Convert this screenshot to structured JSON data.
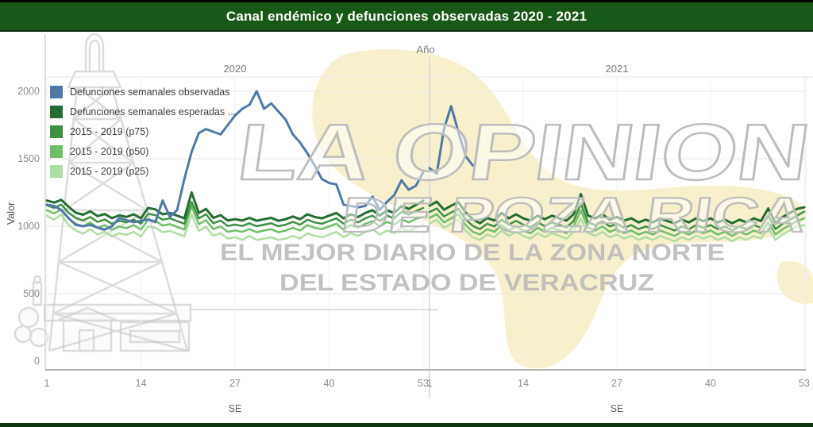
{
  "title": "Canal endémico y defunciones observadas 2020 - 2021",
  "watermark": {
    "line1": "LA OPINION",
    "line2": "DE POZA RICA",
    "line3": "EL MEJOR DIARIO DE LA ZONA NORTE",
    "line4": "DEL ESTADO DE VERACRUZ"
  },
  "colors": {
    "title_bar": "#175916",
    "title_text": "#ffffff",
    "grid_line": "#e7e7e7",
    "grid_line_vertical": "#f0f0f0",
    "frame_line": "#d6d6d6",
    "axis_line": "#b5b5b5",
    "tick_text": "#8c8c8c",
    "watermark_gray": "#bdbdbd",
    "watermark_yellow": "#f7edc4"
  },
  "chart_data": {
    "type": "line",
    "title": "Canal endémico y defunciones observadas 2020 - 2021",
    "facet_axis_title": "Año",
    "facets": [
      "2020",
      "2021"
    ],
    "xlabel": "SE",
    "ylabel": "Valor",
    "ylim": [
      0,
      2100
    ],
    "yticks": [
      0,
      500,
      1000,
      1500,
      2000
    ],
    "xticks": [
      1,
      14,
      27,
      40,
      53
    ],
    "weeks_per_year": 53,
    "grid": true,
    "legend_position": "top-left",
    "series": [
      {
        "name": "Defunciones semanales observadas",
        "color": "#4e79a7",
        "width": 3,
        "values_2020": [
          1160,
          1150,
          1120,
          1060,
          1010,
          1000,
          1010,
          990,
          975,
          1000,
          1060,
          1045,
          1030,
          1040,
          1050,
          1030,
          1190,
          1070,
          1120,
          1350,
          1550,
          1690,
          1720,
          1700,
          1680,
          1750,
          1820,
          1870,
          1900,
          2000,
          1870,
          1910,
          1850,
          1790,
          1680,
          1620,
          1540,
          1450,
          1350,
          1320,
          1310,
          1160,
          1150,
          1140,
          1150,
          1220,
          1120,
          1180,
          1230,
          1340,
          1270,
          1300,
          1400
        ],
        "values_2021": [
          1430,
          1390,
          1720,
          1890,
          1700,
          1520,
          1450
        ]
      },
      {
        "name": "Defunciones semanales esperadas ...",
        "color": "#236d31",
        "width": 3,
        "values_2020": [
          1190,
          1175,
          1195,
          1145,
          1100,
          1085,
          1110,
          1075,
          1090,
          1060,
          1080,
          1068,
          1088,
          1058,
          1135,
          1125,
          1088,
          1098,
          1078,
          1058,
          1250,
          1098,
          1128,
          1062,
          1082,
          1042,
          1052,
          1042,
          1062,
          1040,
          1052,
          1062,
          1040,
          1052,
          1072,
          1052,
          1088,
          1068,
          1058,
          1078,
          1098,
          1058,
          1088,
          1068,
          1098,
          1118,
          1078,
          1118,
          1098,
          1148,
          1128,
          1158,
          1188
        ],
        "values_2021": [
          1152,
          1182,
          1122,
          1152,
          1178,
          1102,
          1052,
          1022,
          1062,
          1042,
          1098,
          1058,
          1088,
          1058,
          1042,
          1078,
          1052,
          1078,
          1058,
          1042,
          1088,
          1238,
          1078,
          1058,
          1088,
          1048,
          1068,
          1042,
          1058,
          1028,
          1048,
          1028,
          1058,
          1038,
          1022,
          1048,
          1028,
          1058,
          1038,
          1058,
          1028,
          1048,
          1022,
          1048,
          1028,
          1058,
          1038,
          1132,
          1022,
          1068,
          1098,
          1128,
          1140
        ]
      },
      {
        "name": "2015 - 2019 (p75)",
        "color": "#3f9142",
        "width": 2.5,
        "values_2020": [
          1155,
          1135,
          1160,
          1100,
          1060,
          1042,
          1068,
          1032,
          1050,
          1018,
          1040,
          1028,
          1048,
          1018,
          1092,
          1082,
          1048,
          1058,
          1038,
          1018,
          1180,
          1058,
          1088,
          1022,
          1042,
          1002,
          1012,
          1002,
          1022,
          1000,
          1012,
          1022,
          1000,
          1012,
          1032,
          1012,
          1048,
          1028,
          1018,
          1038,
          1058,
          1018,
          1048,
          1028,
          1058,
          1078,
          1038,
          1078,
          1058,
          1105,
          1085,
          1112,
          1135
        ],
        "values_2021": [
          1105,
          1132,
          1072,
          1102,
          1128,
          1052,
          1002,
          978,
          1018,
          998,
          1048,
          1012,
          1040,
          1012,
          992,
          1028,
          1002,
          1028,
          1008,
          992,
          1038,
          1168,
          1028,
          1008,
          1038,
          998,
          1018,
          988,
          1008,
          978,
          998,
          978,
          1008,
          988,
          968,
          998,
          978,
          1008,
          988,
          1008,
          978,
          998,
          968,
          998,
          978,
          1008,
          988,
          1078,
          978,
          1018,
          1048,
          1078,
          1108
        ]
      },
      {
        "name": "2015 - 2019 (p50)",
        "color": "#6fbf68",
        "width": 2.5,
        "values_2020": [
          1118,
          1095,
          1125,
          1058,
          1018,
          998,
          1028,
          988,
          1008,
          975,
          998,
          985,
          1008,
          975,
          1048,
          1038,
          1005,
          1015,
          995,
          975,
          1148,
          1015,
          1045,
          978,
          998,
          958,
          968,
          958,
          978,
          955,
          968,
          978,
          955,
          968,
          988,
          968,
          1008,
          988,
          978,
          998,
          1018,
          975,
          1008,
          988,
          1018,
          1038,
          998,
          1032,
          1012,
          1052,
          1028,
          1055,
          1068
        ],
        "values_2021": [
          1062,
          1088,
          1028,
          1058,
          1088,
          1008,
          958,
          938,
          978,
          958,
          1008,
          968,
          998,
          968,
          948,
          988,
          958,
          988,
          968,
          948,
          998,
          1118,
          988,
          968,
          998,
          958,
          978,
          948,
          968,
          938,
          958,
          938,
          968,
          948,
          928,
          958,
          938,
          968,
          948,
          968,
          938,
          958,
          928,
          958,
          938,
          968,
          948,
          1028,
          938,
          978,
          1008,
          1038,
          1058
        ]
      },
      {
        "name": "2015 - 2019 (p25)",
        "color": "#b0dda4",
        "width": 2.5,
        "values_2020": [
          1078,
          1048,
          1088,
          1008,
          968,
          945,
          978,
          938,
          958,
          925,
          948,
          935,
          958,
          925,
          998,
          988,
          955,
          965,
          945,
          925,
          1088,
          965,
          995,
          928,
          948,
          908,
          918,
          898,
          928,
          898,
          908,
          918,
          898,
          908,
          928,
          908,
          948,
          928,
          918,
          938,
          958,
          918,
          948,
          928,
          958,
          978,
          938,
          968,
          948,
          988,
          962,
          992,
          1002
        ],
        "values_2021": [
          1018,
          1048,
          988,
          1018,
          1048,
          968,
          918,
          898,
          938,
          918,
          968,
          928,
          958,
          928,
          908,
          948,
          918,
          948,
          928,
          908,
          958,
          1058,
          948,
          928,
          958,
          918,
          938,
          908,
          928,
          898,
          918,
          898,
          928,
          908,
          888,
          918,
          898,
          928,
          908,
          928,
          898,
          918,
          888,
          918,
          898,
          928,
          908,
          988,
          898,
          938,
          968,
          1000,
          1008
        ]
      }
    ]
  }
}
